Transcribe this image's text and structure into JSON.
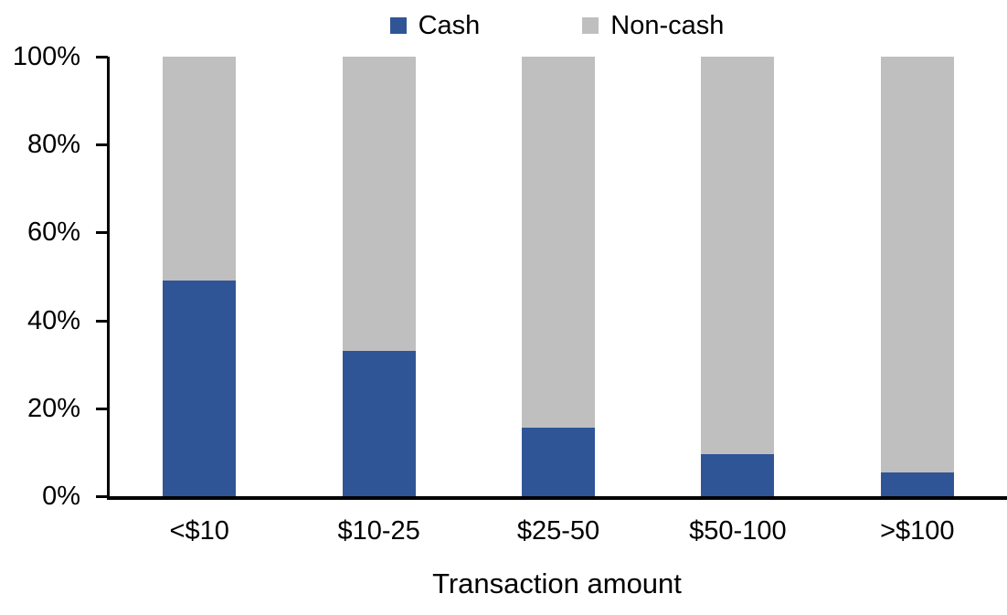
{
  "chart_data": {
    "type": "bar",
    "stacked": true,
    "percent_stacked": true,
    "title": "",
    "categories": [
      "<$10",
      "$10-25",
      "$25-50",
      "$50-100",
      ">$100"
    ],
    "series": [
      {
        "name": "Cash",
        "color": "#2F5597",
        "values": [
          49,
          33,
          15.5,
          9.5,
          5.5
        ]
      },
      {
        "name": "Non-cash",
        "color": "#BFBFBF",
        "values": [
          51,
          67,
          84.5,
          90.5,
          94.5
        ]
      }
    ],
    "xlabel": "Transaction amount",
    "ylabel": "",
    "ylim": [
      0,
      100
    ],
    "yticks": [
      0,
      20,
      40,
      60,
      80,
      100
    ],
    "ytick_suffix": "%",
    "legend_position": "top",
    "grid": false,
    "axis_color": "#000000",
    "background_color": "#FFFFFF",
    "text_color": "#000000"
  }
}
